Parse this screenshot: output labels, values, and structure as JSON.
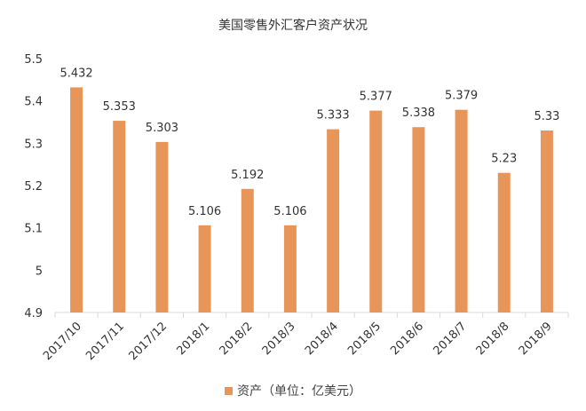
{
  "chart_data": {
    "type": "bar",
    "title": "美国零售外汇客户资产状况",
    "categories": [
      "2017/10",
      "2017/11",
      "2017/12",
      "2018/1",
      "2018/2",
      "2018/3",
      "2018/4",
      "2018/5",
      "2018/6",
      "2018/7",
      "2018/8",
      "2018/9"
    ],
    "series": [
      {
        "name": "资产（单位：亿美元）",
        "values": [
          5.432,
          5.353,
          5.303,
          5.106,
          5.192,
          5.106,
          5.333,
          5.377,
          5.338,
          5.379,
          5.23,
          5.33
        ],
        "labels": [
          "5.432",
          "5.353",
          "5.303",
          "5.106",
          "5.192",
          "5.106",
          "5.333",
          "5.377",
          "5.338",
          "5.379",
          "5.23",
          "5.33"
        ]
      }
    ],
    "yticks": [
      4.9,
      5,
      5.1,
      5.2,
      5.3,
      5.4,
      5.5
    ],
    "ytick_labels": [
      "4.9",
      "5",
      "5.1",
      "5.2",
      "5.3",
      "5.4",
      "5.5"
    ],
    "ylim": [
      4.9,
      5.5
    ],
    "xlabel": "",
    "ylabel": "",
    "grid": false,
    "legend_position": "bottom",
    "bar_color": "#E8955A",
    "axis_color": "#D9D9D9",
    "text_color": "#333333"
  }
}
